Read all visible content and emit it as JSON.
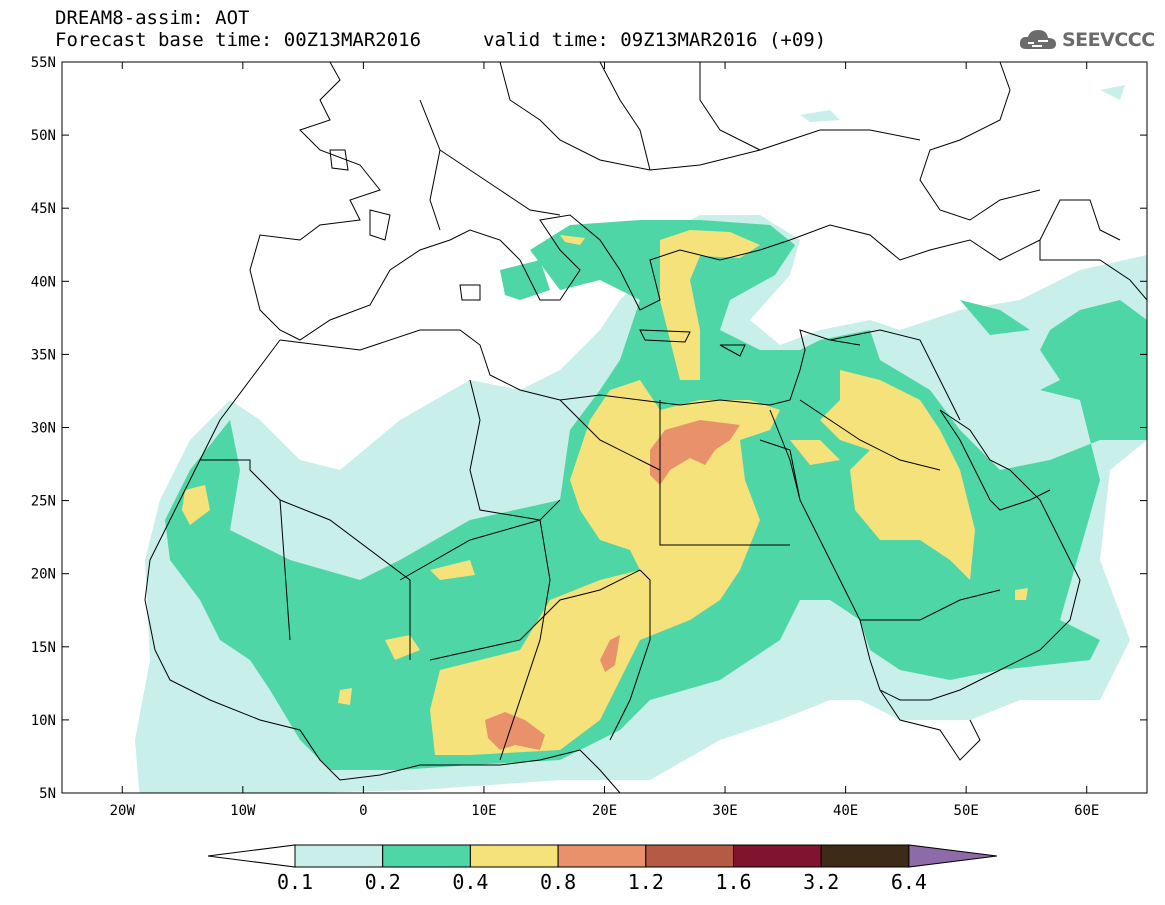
{
  "header": {
    "title_line1": "DREAM8-assim: AOT",
    "title_line2": "Forecast base time: 00Z13MAR2016",
    "valid_time": "valid time: 09Z13MAR2016 (+09)",
    "logo_text": "SEEVCCC"
  },
  "map": {
    "lat_labels": [
      "55N",
      "50N",
      "45N",
      "40N",
      "35N",
      "30N",
      "25N",
      "20N",
      "15N",
      "10N",
      "5N"
    ],
    "lon_labels": [
      "20W",
      "10W",
      "0",
      "10E",
      "20E",
      "30E",
      "40E",
      "50E",
      "60E"
    ],
    "lat_range": [
      5,
      55
    ],
    "lon_range": [
      -25,
      65
    ],
    "variable": "AOT"
  },
  "colorbar": {
    "labels": [
      "0.1",
      "0.2",
      "0.4",
      "0.8",
      "1.2",
      "1.6",
      "3.2",
      "6.4"
    ],
    "colors": [
      "#ffffff",
      "#c8efe9",
      "#4fd6a6",
      "#f5e27a",
      "#e8916b",
      "#b55a45",
      "#80142e",
      "#3d2a17",
      "#8e6aa8"
    ]
  }
}
